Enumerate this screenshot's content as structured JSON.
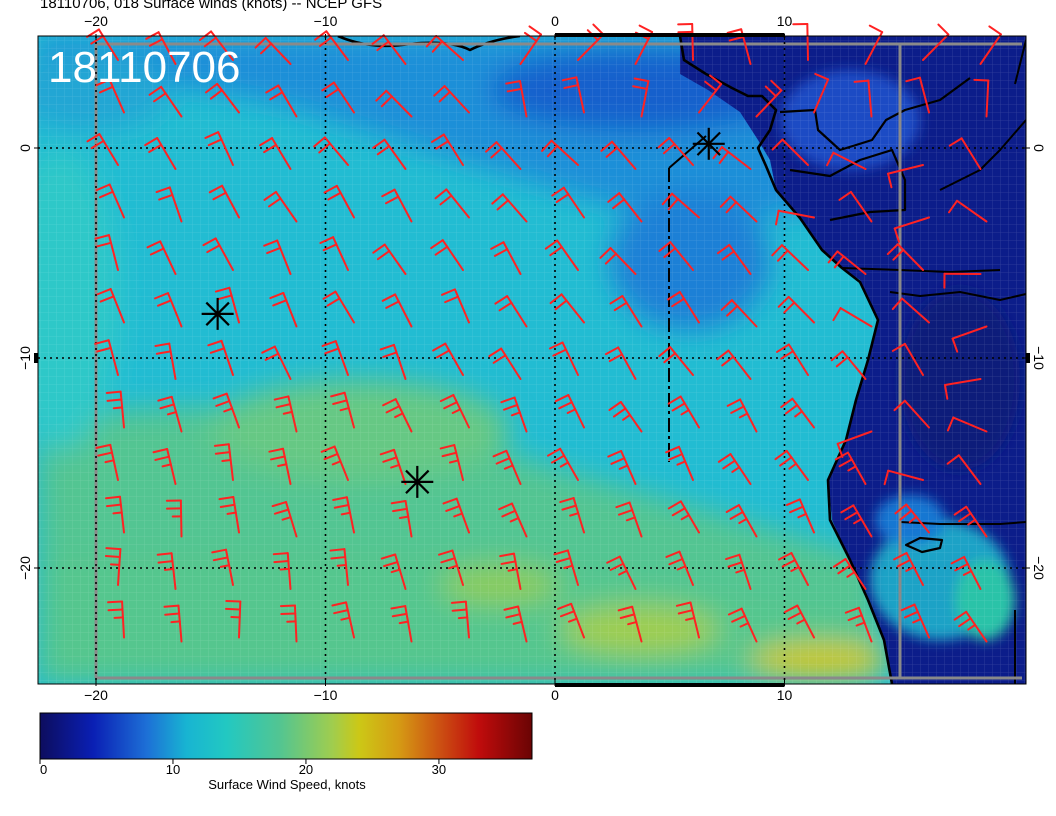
{
  "title": "18110706, 018 Surface winds (knots) -- NCEP GFS",
  "stamp": "18110706",
  "axes": {
    "x_ticks": [
      {
        "value": -20,
        "label": "−20"
      },
      {
        "value": -10,
        "label": "−10"
      },
      {
        "value": 0,
        "label": "0"
      },
      {
        "value": 10,
        "label": "10"
      }
    ],
    "y_ticks": [
      {
        "value": 0,
        "label": "0"
      },
      {
        "value": -10,
        "label": "−10"
      },
      {
        "value": -20,
        "label": "−20"
      }
    ]
  },
  "markers": [
    {
      "name": "marker-1",
      "lon": 6.7,
      "lat": 0.2
    },
    {
      "name": "marker-2",
      "lon": -14.7,
      "lat": -7.9
    },
    {
      "name": "marker-3",
      "lon": -6.0,
      "lat": -15.9
    }
  ],
  "colorbar": {
    "label": "Surface Wind Speed, knots",
    "min": 0,
    "max": 37,
    "ticks": [
      {
        "value": 0,
        "label": "0"
      },
      {
        "value": 10,
        "label": "10"
      },
      {
        "value": 20,
        "label": "20"
      },
      {
        "value": 30,
        "label": "30"
      }
    ],
    "stops": [
      {
        "value": 0,
        "color": "#0d0d5e"
      },
      {
        "value": 4,
        "color": "#0a1fb4"
      },
      {
        "value": 8,
        "color": "#1d6fd6"
      },
      {
        "value": 11,
        "color": "#18b4d2"
      },
      {
        "value": 14,
        "color": "#22c8c2"
      },
      {
        "value": 18,
        "color": "#52c592"
      },
      {
        "value": 22,
        "color": "#a0cd4e"
      },
      {
        "value": 24,
        "color": "#ccc816"
      },
      {
        "value": 27,
        "color": "#d59a14"
      },
      {
        "value": 30,
        "color": "#cc5212"
      },
      {
        "value": 33,
        "color": "#c00c0c"
      },
      {
        "value": 37,
        "color": "#6a0404"
      }
    ]
  },
  "colors": {
    "barb": "#ff2222",
    "land": "#0c1d8a",
    "coast": "#000000",
    "grid": "#ffffff",
    "frame": "#888888"
  }
}
